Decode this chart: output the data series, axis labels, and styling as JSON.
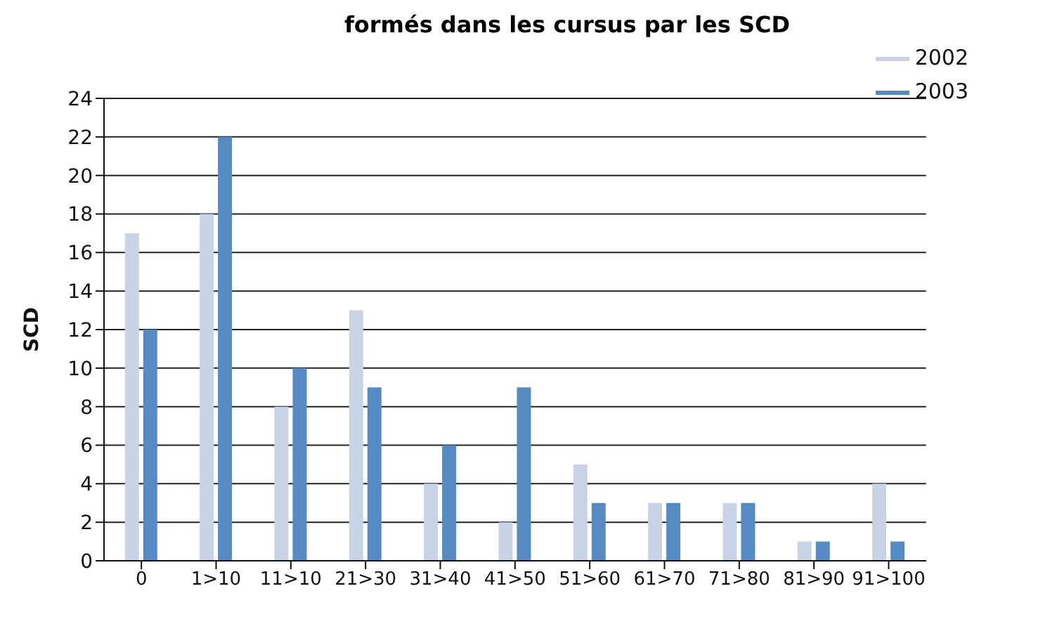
{
  "chart_data": {
    "type": "bar",
    "title": "formés dans les cursus par les SCD",
    "ylabel": "SCD",
    "categories": [
      "0",
      "1>10",
      "11>10",
      "21>30",
      "31>40",
      "41>50",
      "51>60",
      "61>70",
      "71>80",
      "81>90",
      "91>100"
    ],
    "series": [
      {
        "name": "2002",
        "color": "#c9d3e6",
        "values": [
          17,
          18,
          8,
          13,
          4,
          2,
          5,
          3,
          3,
          1,
          4
        ]
      },
      {
        "name": "2003",
        "color": "#568ac2",
        "values": [
          12,
          22,
          10,
          9,
          6,
          9,
          3,
          3,
          3,
          1,
          1
        ]
      }
    ],
    "ylim": [
      0,
      24
    ],
    "yticks": [
      0,
      2,
      4,
      6,
      8,
      10,
      12,
      14,
      16,
      18,
      20,
      22,
      24
    ],
    "grid": "y",
    "legend": "top right"
  }
}
